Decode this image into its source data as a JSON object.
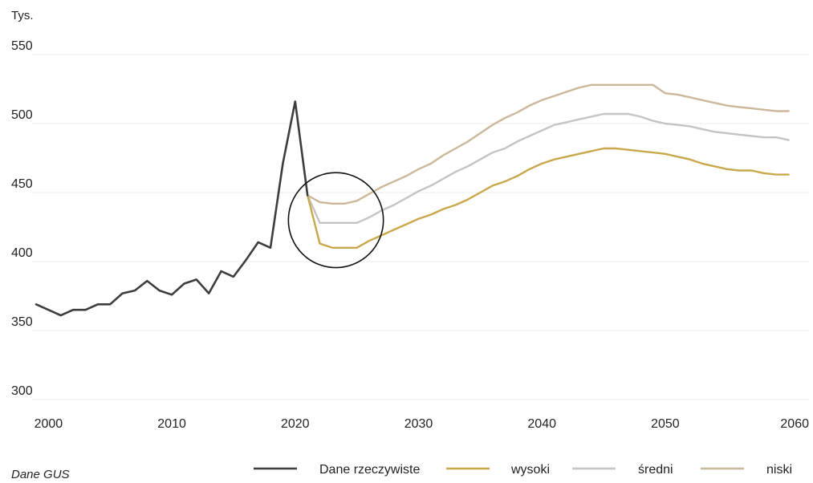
{
  "chart_data": {
    "type": "line",
    "ylabel": "Tys.",
    "ylim": [
      300,
      560
    ],
    "xlim": [
      1999,
      2061
    ],
    "yticks": [
      300,
      350,
      400,
      450,
      500,
      550
    ],
    "xticks": [
      2000,
      2010,
      2020,
      2030,
      2040,
      2050,
      2060
    ],
    "grid": "horizontal",
    "legend_position": "bottom-right",
    "source": "Dane GUS",
    "series": [
      {
        "name": "Dane rzeczywiste",
        "color": "#3d3d3d",
        "points": [
          [
            1999,
            369
          ],
          [
            2000,
            365
          ],
          [
            2001,
            361
          ],
          [
            2002,
            365
          ],
          [
            2003,
            365
          ],
          [
            2004,
            369
          ],
          [
            2005,
            369
          ],
          [
            2006,
            377
          ],
          [
            2007,
            379
          ],
          [
            2008,
            386
          ],
          [
            2009,
            379
          ],
          [
            2010,
            376
          ],
          [
            2011,
            384
          ],
          [
            2012,
            387
          ],
          [
            2013,
            377
          ],
          [
            2014,
            393
          ],
          [
            2015,
            389
          ],
          [
            2016,
            401
          ],
          [
            2017,
            414
          ],
          [
            2018,
            410
          ],
          [
            2019,
            471
          ],
          [
            2020,
            516
          ],
          [
            2021,
            448
          ]
        ]
      },
      {
        "name": "wysoki",
        "color": "#c9a84c",
        "points": [
          [
            2021,
            448
          ],
          [
            2022,
            413
          ],
          [
            2023,
            410
          ],
          [
            2024,
            410
          ],
          [
            2025,
            410
          ],
          [
            2026,
            415
          ],
          [
            2027,
            419
          ],
          [
            2028,
            423
          ],
          [
            2029,
            427
          ],
          [
            2030,
            431
          ],
          [
            2031,
            434
          ],
          [
            2032,
            438
          ],
          [
            2033,
            441
          ],
          [
            2034,
            445
          ],
          [
            2035,
            450
          ],
          [
            2036,
            455
          ],
          [
            2037,
            458
          ],
          [
            2038,
            462
          ],
          [
            2039,
            467
          ],
          [
            2040,
            471
          ],
          [
            2041,
            474
          ],
          [
            2042,
            476
          ],
          [
            2043,
            478
          ],
          [
            2044,
            480
          ],
          [
            2045,
            482
          ],
          [
            2046,
            482
          ],
          [
            2047,
            481
          ],
          [
            2048,
            480
          ],
          [
            2049,
            479
          ],
          [
            2050,
            478
          ],
          [
            2051,
            476
          ],
          [
            2052,
            474
          ],
          [
            2053,
            471
          ],
          [
            2054,
            469
          ],
          [
            2055,
            467
          ],
          [
            2056,
            466
          ],
          [
            2057,
            466
          ],
          [
            2058,
            464
          ],
          [
            2059,
            463
          ],
          [
            2060,
            463
          ]
        ]
      },
      {
        "name": "średni",
        "color": "#c4c4c4",
        "points": [
          [
            2021,
            448
          ],
          [
            2022,
            428
          ],
          [
            2023,
            428
          ],
          [
            2024,
            428
          ],
          [
            2025,
            428
          ],
          [
            2026,
            432
          ],
          [
            2027,
            437
          ],
          [
            2028,
            441
          ],
          [
            2029,
            446
          ],
          [
            2030,
            451
          ],
          [
            2031,
            455
          ],
          [
            2032,
            460
          ],
          [
            2033,
            465
          ],
          [
            2034,
            469
          ],
          [
            2035,
            474
          ],
          [
            2036,
            479
          ],
          [
            2037,
            482
          ],
          [
            2038,
            487
          ],
          [
            2039,
            491
          ],
          [
            2040,
            495
          ],
          [
            2041,
            499
          ],
          [
            2042,
            501
          ],
          [
            2043,
            503
          ],
          [
            2044,
            505
          ],
          [
            2045,
            507
          ],
          [
            2046,
            507
          ],
          [
            2047,
            507
          ],
          [
            2048,
            505
          ],
          [
            2049,
            502
          ],
          [
            2050,
            500
          ],
          [
            2051,
            499
          ],
          [
            2052,
            498
          ],
          [
            2053,
            496
          ],
          [
            2054,
            494
          ],
          [
            2055,
            493
          ],
          [
            2056,
            492
          ],
          [
            2057,
            491
          ],
          [
            2058,
            490
          ],
          [
            2059,
            490
          ],
          [
            2060,
            488
          ]
        ]
      },
      {
        "name": "niski",
        "color": "#cbb89a",
        "points": [
          [
            2021,
            448
          ],
          [
            2022,
            443
          ],
          [
            2023,
            442
          ],
          [
            2024,
            442
          ],
          [
            2025,
            444
          ],
          [
            2026,
            449
          ],
          [
            2027,
            454
          ],
          [
            2028,
            458
          ],
          [
            2029,
            462
          ],
          [
            2030,
            467
          ],
          [
            2031,
            471
          ],
          [
            2032,
            477
          ],
          [
            2033,
            482
          ],
          [
            2034,
            487
          ],
          [
            2035,
            493
          ],
          [
            2036,
            499
          ],
          [
            2037,
            504
          ],
          [
            2038,
            508
          ],
          [
            2039,
            513
          ],
          [
            2040,
            517
          ],
          [
            2041,
            520
          ],
          [
            2042,
            523
          ],
          [
            2043,
            526
          ],
          [
            2044,
            528
          ],
          [
            2045,
            528
          ],
          [
            2046,
            528
          ],
          [
            2047,
            528
          ],
          [
            2048,
            528
          ],
          [
            2049,
            528
          ],
          [
            2050,
            522
          ],
          [
            2051,
            521
          ],
          [
            2052,
            519
          ],
          [
            2053,
            517
          ],
          [
            2054,
            515
          ],
          [
            2055,
            513
          ],
          [
            2056,
            512
          ],
          [
            2057,
            511
          ],
          [
            2058,
            510
          ],
          [
            2059,
            509
          ],
          [
            2060,
            509
          ]
        ]
      }
    ],
    "annotation": {
      "type": "circle",
      "center": [
        2023.3,
        430
      ],
      "note": ""
    }
  },
  "colors": {
    "grid": "#ececec",
    "annotation_stroke": "#111111"
  }
}
